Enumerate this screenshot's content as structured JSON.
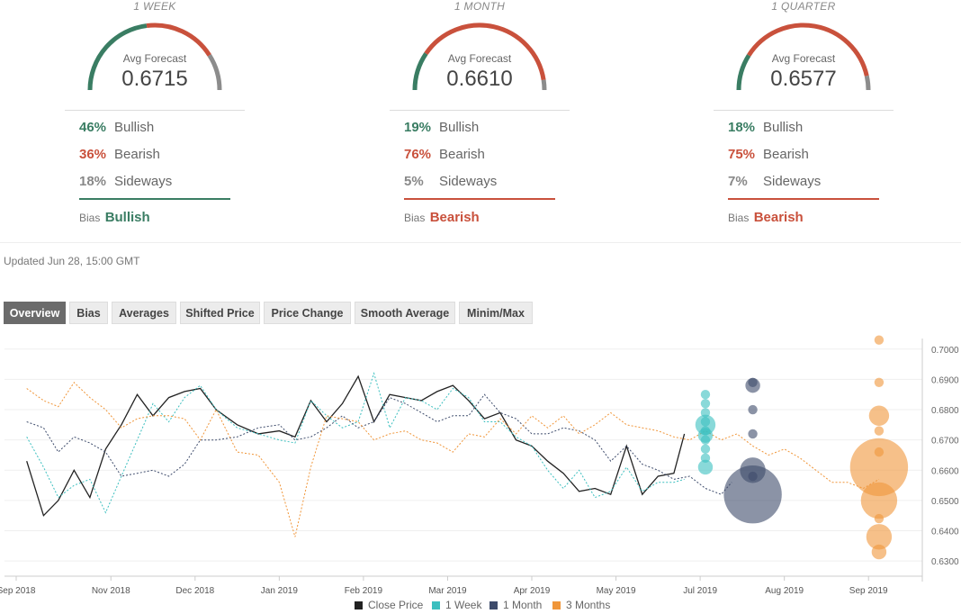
{
  "panels": [
    {
      "period": "1 WEEK",
      "avg_label": "Avg Forecast",
      "avg_value": "0.6715",
      "rows": [
        {
          "pct": "46%",
          "label": "Bullish"
        },
        {
          "pct": "36%",
          "label": "Bearish"
        },
        {
          "pct": "18%",
          "label": "Sideways"
        }
      ],
      "bias_label": "Bias",
      "bias_value": "Bullish",
      "bias_color": "#3a7d63",
      "gauge": {
        "bullish": 46,
        "bearish": 36,
        "sideways": 18
      }
    },
    {
      "period": "1 MONTH",
      "avg_label": "Avg Forecast",
      "avg_value": "0.6610",
      "rows": [
        {
          "pct": "19%",
          "label": "Bullish"
        },
        {
          "pct": "76%",
          "label": "Bearish"
        },
        {
          "pct": "5%",
          "label": "Sideways"
        }
      ],
      "bias_label": "Bias",
      "bias_value": "Bearish",
      "bias_color": "#c9513c",
      "gauge": {
        "bullish": 19,
        "bearish": 76,
        "sideways": 5
      }
    },
    {
      "period": "1 QUARTER",
      "avg_label": "Avg Forecast",
      "avg_value": "0.6577",
      "rows": [
        {
          "pct": "18%",
          "label": "Bullish"
        },
        {
          "pct": "75%",
          "label": "Bearish"
        },
        {
          "pct": "7%",
          "label": "Sideways"
        }
      ],
      "bias_label": "Bias",
      "bias_value": "Bearish",
      "bias_color": "#c9513c",
      "gauge": {
        "bullish": 18,
        "bearish": 75,
        "sideways": 7
      }
    }
  ],
  "colors": {
    "bullish": "#3a7d63",
    "bearish": "#c9513c",
    "sideways": "#8c8c8c"
  },
  "updated": "Updated Jun 28, 15:00 GMT",
  "tabs": [
    {
      "label": "Overview",
      "active": true
    },
    {
      "label": "Bias"
    },
    {
      "label": "Averages"
    },
    {
      "label": "Shifted Price"
    },
    {
      "label": "Price Change"
    },
    {
      "label": "Smooth Average"
    },
    {
      "label": "Minim/Max"
    }
  ],
  "chart_data": {
    "type": "line",
    "ylim": [
      0.625,
      0.7035
    ],
    "xlim": [
      0,
      85
    ],
    "y_ticks": [
      "0.7000",
      "0.6900",
      "0.6800",
      "0.6700",
      "0.6600",
      "0.6500",
      "0.6400",
      "0.6300"
    ],
    "y_tick_values": [
      0.7,
      0.69,
      0.68,
      0.67,
      0.66,
      0.65,
      0.64,
      0.63
    ],
    "x_ticks": [
      {
        "label": "Sep 2018",
        "x": 0
      },
      {
        "label": "Nov 2018",
        "x": 9
      },
      {
        "label": "Dec 2018",
        "x": 17
      },
      {
        "label": "Jan 2019",
        "x": 25
      },
      {
        "label": "Feb 2019",
        "x": 33
      },
      {
        "label": "Mar 2019",
        "x": 41
      },
      {
        "label": "Apr 2019",
        "x": 49
      },
      {
        "label": "May 2019",
        "x": 57
      },
      {
        "label": "Jul 2019",
        "x": 65
      },
      {
        "label": "Aug 2019",
        "x": 73
      },
      {
        "label": "Sep 2019",
        "x": 81
      }
    ],
    "series": [
      {
        "name": "Close Price",
        "color": "#222222",
        "dashed": false,
        "points": [
          [
            1,
            0.663
          ],
          [
            2.6,
            0.645
          ],
          [
            4,
            0.65
          ],
          [
            5.5,
            0.66
          ],
          [
            7,
            0.651
          ],
          [
            8.5,
            0.667
          ],
          [
            10,
            0.675
          ],
          [
            11.5,
            0.685
          ],
          [
            13,
            0.678
          ],
          [
            14.5,
            0.684
          ],
          [
            16,
            0.686
          ],
          [
            17.5,
            0.687
          ],
          [
            19,
            0.68
          ],
          [
            21,
            0.675
          ],
          [
            23,
            0.672
          ],
          [
            25,
            0.673
          ],
          [
            26.5,
            0.671
          ],
          [
            28,
            0.683
          ],
          [
            29.5,
            0.676
          ],
          [
            31,
            0.682
          ],
          [
            32.5,
            0.691
          ],
          [
            34,
            0.676
          ],
          [
            35.5,
            0.685
          ],
          [
            37,
            0.684
          ],
          [
            38.5,
            0.683
          ],
          [
            40,
            0.686
          ],
          [
            41.5,
            0.688
          ],
          [
            43,
            0.683
          ],
          [
            44.5,
            0.677
          ],
          [
            46,
            0.679
          ],
          [
            47.5,
            0.67
          ],
          [
            49,
            0.668
          ],
          [
            50.5,
            0.663
          ],
          [
            52,
            0.659
          ],
          [
            53.5,
            0.653
          ],
          [
            55,
            0.654
          ],
          [
            56.5,
            0.652
          ],
          [
            58,
            0.668
          ],
          [
            59.5,
            0.652
          ],
          [
            61,
            0.658
          ],
          [
            62.5,
            0.659
          ],
          [
            63.5,
            0.672
          ]
        ]
      },
      {
        "name": "1 Week",
        "color": "#3bbfbf",
        "dashed": true,
        "points": [
          [
            1,
            0.671
          ],
          [
            2.6,
            0.661
          ],
          [
            4,
            0.651
          ],
          [
            5.5,
            0.655
          ],
          [
            7,
            0.657
          ],
          [
            8.5,
            0.646
          ],
          [
            10,
            0.658
          ],
          [
            11.5,
            0.67
          ],
          [
            13,
            0.682
          ],
          [
            14.5,
            0.676
          ],
          [
            16,
            0.684
          ],
          [
            17.5,
            0.688
          ],
          [
            19,
            0.68
          ],
          [
            21,
            0.674
          ],
          [
            23,
            0.672
          ],
          [
            25,
            0.67
          ],
          [
            26.5,
            0.669
          ],
          [
            28,
            0.683
          ],
          [
            29.5,
            0.678
          ],
          [
            31,
            0.674
          ],
          [
            32.5,
            0.676
          ],
          [
            34,
            0.692
          ],
          [
            35.5,
            0.674
          ],
          [
            37,
            0.684
          ],
          [
            38.5,
            0.683
          ],
          [
            40,
            0.68
          ],
          [
            41.5,
            0.687
          ],
          [
            43,
            0.684
          ],
          [
            44.5,
            0.676
          ],
          [
            46,
            0.676
          ],
          [
            47.5,
            0.671
          ],
          [
            49,
            0.668
          ],
          [
            50.5,
            0.66
          ],
          [
            52,
            0.654
          ],
          [
            53.5,
            0.66
          ],
          [
            55,
            0.651
          ],
          [
            56.5,
            0.653
          ],
          [
            58,
            0.661
          ],
          [
            59.5,
            0.653
          ],
          [
            61,
            0.656
          ],
          [
            62.5,
            0.656
          ],
          [
            63.5,
            0.657
          ]
        ]
      },
      {
        "name": "1 Month",
        "color": "#3d4b6b",
        "dashed": true,
        "points": [
          [
            1,
            0.676
          ],
          [
            2.6,
            0.674
          ],
          [
            4,
            0.666
          ],
          [
            5.5,
            0.671
          ],
          [
            7,
            0.669
          ],
          [
            8.5,
            0.666
          ],
          [
            10,
            0.658
          ],
          [
            11.5,
            0.659
          ],
          [
            13,
            0.66
          ],
          [
            14.5,
            0.658
          ],
          [
            16,
            0.662
          ],
          [
            17.5,
            0.67
          ],
          [
            19,
            0.67
          ],
          [
            21,
            0.671
          ],
          [
            23,
            0.674
          ],
          [
            25,
            0.675
          ],
          [
            26.5,
            0.67
          ],
          [
            28,
            0.671
          ],
          [
            29.5,
            0.674
          ],
          [
            31,
            0.678
          ],
          [
            32.5,
            0.674
          ],
          [
            34,
            0.676
          ],
          [
            35.5,
            0.684
          ],
          [
            37,
            0.682
          ],
          [
            38.5,
            0.679
          ],
          [
            40,
            0.676
          ],
          [
            41.5,
            0.678
          ],
          [
            43,
            0.678
          ],
          [
            44.5,
            0.685
          ],
          [
            46,
            0.679
          ],
          [
            47.5,
            0.677
          ],
          [
            49,
            0.672
          ],
          [
            50.5,
            0.672
          ],
          [
            52,
            0.674
          ],
          [
            53.5,
            0.673
          ],
          [
            55,
            0.67
          ],
          [
            56.5,
            0.663
          ],
          [
            58,
            0.668
          ],
          [
            59.5,
            0.662
          ],
          [
            61,
            0.66
          ],
          [
            62.5,
            0.657
          ],
          [
            64,
            0.658
          ],
          [
            65.5,
            0.654
          ],
          [
            67,
            0.652
          ],
          [
            68,
            0.656
          ]
        ]
      },
      {
        "name": "3 Months",
        "color": "#f0963a",
        "dashed": true,
        "points": [
          [
            1,
            0.687
          ],
          [
            2.6,
            0.683
          ],
          [
            4,
            0.681
          ],
          [
            5.5,
            0.689
          ],
          [
            7,
            0.684
          ],
          [
            8.5,
            0.68
          ],
          [
            10,
            0.674
          ],
          [
            11.5,
            0.677
          ],
          [
            13,
            0.678
          ],
          [
            14.5,
            0.678
          ],
          [
            16,
            0.677
          ],
          [
            17.5,
            0.67
          ],
          [
            19,
            0.68
          ],
          [
            21,
            0.666
          ],
          [
            23,
            0.665
          ],
          [
            25,
            0.656
          ],
          [
            26.5,
            0.638
          ],
          [
            28,
            0.661
          ],
          [
            29.5,
            0.678
          ],
          [
            31,
            0.677
          ],
          [
            32.5,
            0.676
          ],
          [
            34,
            0.67
          ],
          [
            35.5,
            0.672
          ],
          [
            37,
            0.673
          ],
          [
            38.5,
            0.67
          ],
          [
            40,
            0.669
          ],
          [
            41.5,
            0.666
          ],
          [
            43,
            0.672
          ],
          [
            44.5,
            0.671
          ],
          [
            46,
            0.677
          ],
          [
            47.5,
            0.672
          ],
          [
            49,
            0.678
          ],
          [
            50.5,
            0.674
          ],
          [
            52,
            0.678
          ],
          [
            53.5,
            0.672
          ],
          [
            55,
            0.675
          ],
          [
            56.5,
            0.679
          ],
          [
            58,
            0.675
          ],
          [
            59.5,
            0.674
          ],
          [
            61,
            0.673
          ],
          [
            62.5,
            0.671
          ],
          [
            64,
            0.67
          ],
          [
            65.5,
            0.673
          ],
          [
            67,
            0.67
          ],
          [
            68.5,
            0.672
          ],
          [
            70,
            0.668
          ],
          [
            71.5,
            0.665
          ],
          [
            73,
            0.667
          ],
          [
            74.5,
            0.664
          ],
          [
            76,
            0.66
          ],
          [
            77.5,
            0.656
          ],
          [
            79,
            0.656
          ],
          [
            80.5,
            0.654
          ],
          [
            82,
            0.657
          ]
        ]
      }
    ],
    "bubbles": [
      {
        "series": "1 Week",
        "x": 65.5,
        "points": [
          [
            0.685,
            1
          ],
          [
            0.682,
            1
          ],
          [
            0.679,
            1
          ],
          [
            0.676,
            1
          ],
          [
            0.673,
            1
          ],
          [
            0.67,
            1
          ],
          [
            0.667,
            1
          ],
          [
            0.664,
            1
          ],
          [
            0.661,
            2
          ],
          [
            0.675,
            3
          ],
          [
            0.6715,
            2
          ]
        ]
      },
      {
        "series": "1 Month",
        "x": 70,
        "points": [
          [
            0.689,
            1
          ],
          [
            0.688,
            2
          ],
          [
            0.68,
            1
          ],
          [
            0.672,
            1
          ],
          [
            0.66,
            4
          ],
          [
            0.658,
            1
          ],
          [
            0.652,
            10
          ]
        ]
      },
      {
        "series": "3 Months",
        "x": 82,
        "points": [
          [
            0.703,
            1
          ],
          [
            0.689,
            1
          ],
          [
            0.678,
            3
          ],
          [
            0.673,
            1
          ],
          [
            0.666,
            1
          ],
          [
            0.661,
            10
          ],
          [
            0.65,
            6
          ],
          [
            0.644,
            1
          ],
          [
            0.638,
            4
          ],
          [
            0.633,
            2
          ]
        ]
      }
    ],
    "legend": [
      "Close Price",
      "1 Week",
      "1 Month",
      "3 Months"
    ]
  }
}
